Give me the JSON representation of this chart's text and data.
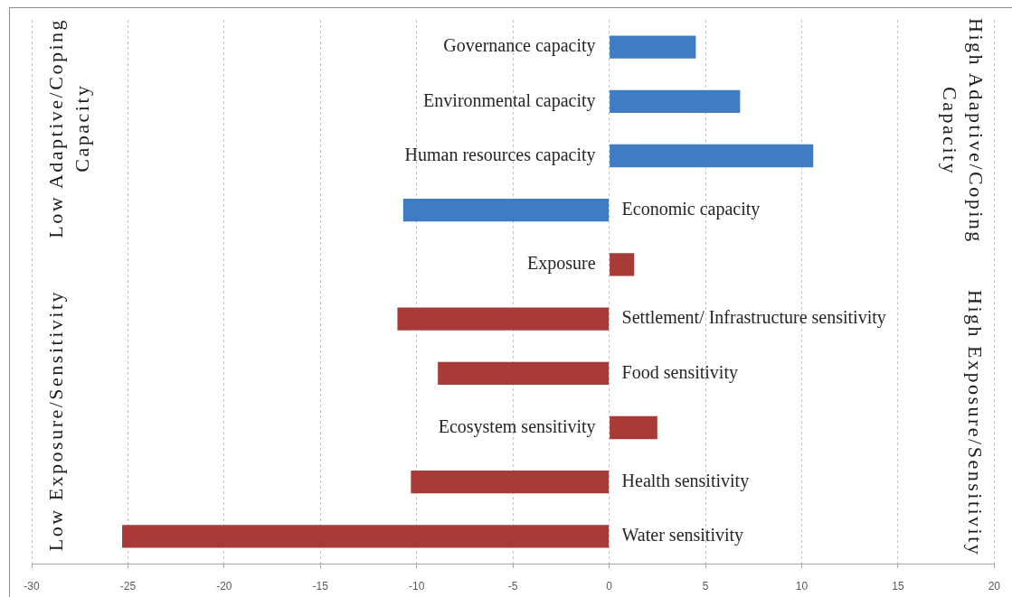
{
  "chart_data": {
    "type": "bar",
    "orientation": "horizontal",
    "categories": [
      "Governance capacity",
      "Environmental capacity",
      "Human resources capacity",
      "Economic capacity",
      "Exposure",
      "Settlement/ Infrastructure sensitivity",
      "Food sensitivity",
      "Ecosystem sensitivity",
      "Health sensitivity",
      "Water sensitivity"
    ],
    "values": [
      4.5,
      6.8,
      10.6,
      -10.7,
      1.3,
      -11.0,
      -8.9,
      2.5,
      -10.3,
      -25.3
    ],
    "colors": [
      "#3f7cc4",
      "#3f7cc4",
      "#3f7cc4",
      "#3f7cc4",
      "#a83a38",
      "#a83a38",
      "#a83a38",
      "#a83a38",
      "#a83a38",
      "#a83a38"
    ],
    "xlim": [
      -30,
      20
    ],
    "xticks": [
      -30,
      -25,
      -20,
      -15,
      -10,
      -5,
      0,
      5,
      10,
      15,
      20
    ],
    "grid": "x",
    "annotations": [
      "Low Adaptive/Coping Capacity",
      "High Adaptive/Coping Capacity",
      "Low Exposure/Sensitivity",
      "High Exposure/Sensitivity"
    ]
  }
}
